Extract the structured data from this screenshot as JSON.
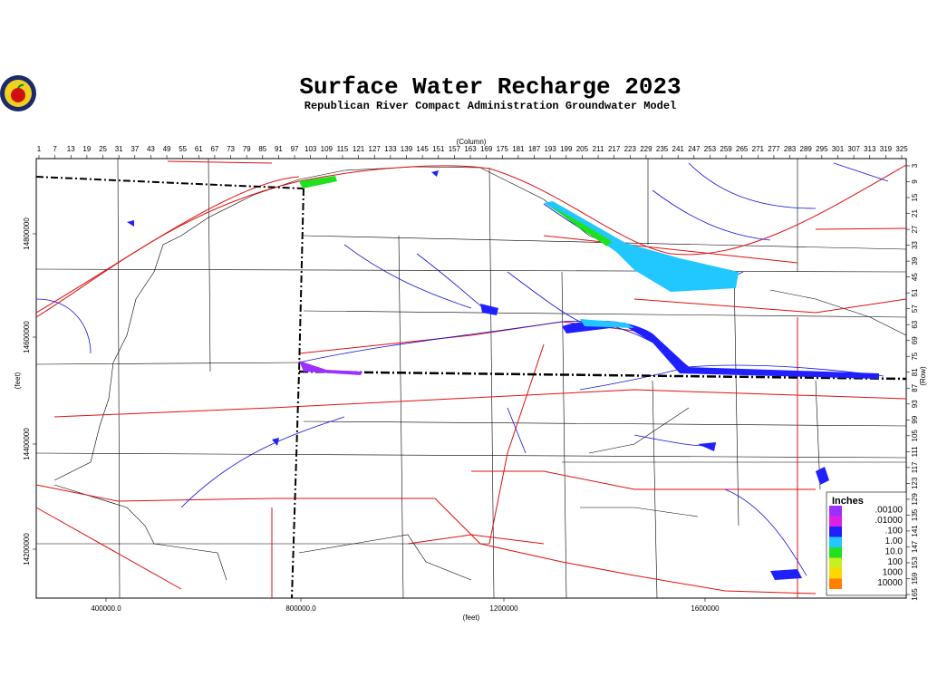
{
  "title": "Surface Water Recharge 2023",
  "subtitle": "Republican River Compact Administration Groundwater Model",
  "column_axis": {
    "label": "(Column)",
    "ticks": [
      1,
      7,
      13,
      19,
      25,
      31,
      37,
      43,
      49,
      55,
      61,
      67,
      73,
      79,
      85,
      91,
      97,
      103,
      109,
      115,
      121,
      127,
      133,
      139,
      145,
      151,
      157,
      163,
      169,
      175,
      181,
      187,
      193,
      199,
      205,
      211,
      217,
      223,
      229,
      235,
      241,
      247,
      253,
      259,
      265,
      271,
      277,
      283,
      289,
      295,
      301,
      307,
      313,
      319,
      325
    ]
  },
  "row_axis": {
    "label": "(Row)",
    "ticks": [
      3,
      9,
      15,
      21,
      27,
      33,
      39,
      45,
      51,
      57,
      63,
      69,
      75,
      81,
      87,
      93,
      99,
      105,
      111,
      117,
      123,
      129,
      135,
      141,
      147,
      153,
      159,
      165
    ]
  },
  "x_axis": {
    "label": "(feet)",
    "ticks": [
      "400000.0",
      "800000.0",
      "1200000",
      "1600000"
    ]
  },
  "y_axis": {
    "label": "(feet)",
    "ticks": [
      "14800000",
      "14600000",
      "14400000",
      "14200000"
    ]
  },
  "legend": {
    "title": "Inches",
    "items": [
      {
        "label": ".00100",
        "color": "#9b30ff"
      },
      {
        "label": ".01000",
        "color": "#e020e0"
      },
      {
        "label": ".100",
        "color": "#2020ff"
      },
      {
        "label": "1.00",
        "color": "#20c8ff"
      },
      {
        "label": "10.0",
        "color": "#20e020"
      },
      {
        "label": "100",
        "color": "#c8f020"
      },
      {
        "label": "1000",
        "color": "#ffd800"
      },
      {
        "label": "10000",
        "color": "#ff8000"
      }
    ]
  }
}
